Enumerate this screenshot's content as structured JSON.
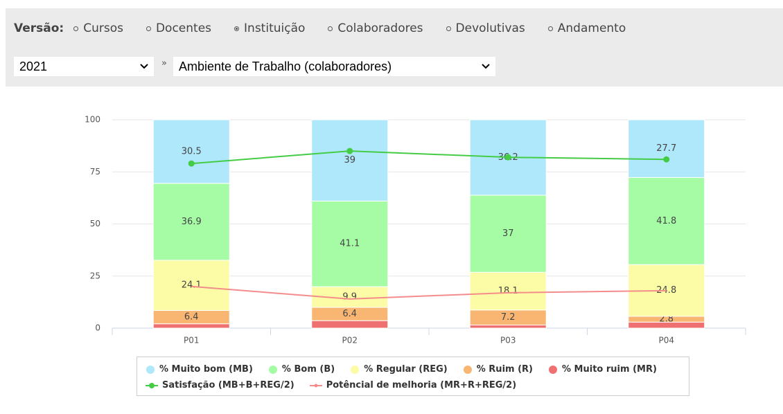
{
  "version_bar": {
    "label": "Versão:",
    "options": [
      "Cursos",
      "Docentes",
      "Instituição",
      "Colaboradores",
      "Devolutivas",
      "Andamento"
    ],
    "selected": 2
  },
  "filters": {
    "year": "2021",
    "separator": "»",
    "survey": "Ambiente de Trabalho (colaboradores)"
  },
  "chart_data": {
    "type": "bar",
    "stacked": true,
    "categories": [
      "P01",
      "P02",
      "P03",
      "P04"
    ],
    "ylim": [
      0,
      100
    ],
    "yticks": [
      0,
      25,
      50,
      75,
      100
    ],
    "grid": true,
    "series": [
      {
        "name": "% Muito ruim (MR)",
        "type": "bar",
        "color": "#ef7070",
        "labels": false,
        "values": [
          2.1,
          3.6,
          1.5,
          2.9
        ]
      },
      {
        "name": "% Ruim (R)",
        "type": "bar",
        "color": "#f9b572",
        "labels": true,
        "values": [
          6.4,
          6.4,
          7.2,
          2.8
        ]
      },
      {
        "name": "% Regular (REG)",
        "type": "bar",
        "color": "#fbfca5",
        "labels": true,
        "values": [
          24.1,
          9.9,
          18.1,
          24.8
        ]
      },
      {
        "name": "% Bom (B)",
        "type": "bar",
        "color": "#a5fca5",
        "labels": true,
        "values": [
          36.9,
          41.1,
          37,
          41.8
        ]
      },
      {
        "name": "% Muito bom (MB)",
        "type": "bar",
        "color": "#aee8fa",
        "labels": true,
        "values": [
          30.5,
          39,
          36.2,
          27.7
        ]
      },
      {
        "name": "Satisfação (MB+B+REG/2)",
        "type": "line",
        "color": "#44cc44",
        "markers": true,
        "values": [
          79,
          85,
          82,
          81
        ]
      },
      {
        "name": "Potêncial de melhoria (MR+R+REG/2)",
        "type": "line",
        "color": "#f48c8c",
        "markers": false,
        "values": [
          20,
          14,
          17,
          18
        ]
      }
    ],
    "legend_order": [
      4,
      3,
      2,
      1,
      0,
      5,
      6
    ]
  }
}
